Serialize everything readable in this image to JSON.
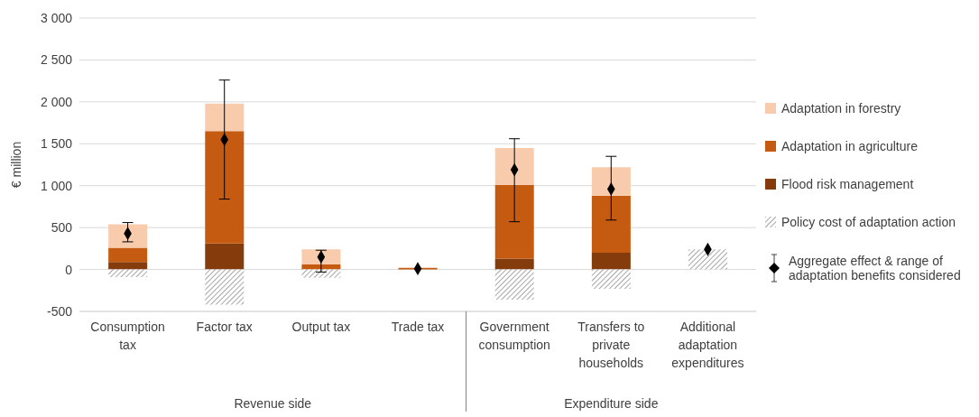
{
  "chart_data": {
    "type": "bar",
    "stacked": true,
    "ylabel": "€ million",
    "categories": [
      "Consumption tax",
      "Factor tax",
      "Output tax",
      "Trade tax",
      "Government consumption",
      "Transfers to private households",
      "Additional adaptation expenditures"
    ],
    "series": [
      {
        "name": "Flood risk management",
        "color": "#843c0c",
        "values": [
          90,
          310,
          0,
          0,
          130,
          200,
          0
        ]
      },
      {
        "name": "Adaptation in agriculture",
        "color": "#c55a11",
        "values": [
          170,
          1340,
          60,
          20,
          880,
          680,
          0
        ]
      },
      {
        "name": "Adaptation in forestry",
        "color": "#f8cbad",
        "values": [
          280,
          330,
          180,
          0,
          440,
          340,
          0
        ]
      },
      {
        "name": "Policy cost of adaptation action",
        "color": "#a6a6a6",
        "values": [
          -90,
          -420,
          -100,
          0,
          -360,
          -230,
          240
        ]
      },
      {
        "name": "Aggregate effect & range of adaptation benefits considered",
        "type": "scatter",
        "marker": "diamond",
        "color": "#000000",
        "values": [
          430,
          1550,
          150,
          10,
          1190,
          960,
          240
        ],
        "errors": [
          [
            330,
            560
          ],
          [
            840,
            2260
          ],
          [
            -30,
            230
          ],
          null,
          [
            570,
            1560
          ],
          [
            590,
            1350
          ],
          null
        ]
      }
    ],
    "ylim": [
      -500,
      3000
    ],
    "yticks": [
      {
        "value": -500,
        "label": "-500"
      },
      0,
      500,
      {
        "value": 1000,
        "label": "1 000"
      },
      {
        "value": 1500,
        "label": "1 500"
      },
      {
        "value": 2000,
        "label": "2 000"
      },
      {
        "value": 2500,
        "label": "2 500"
      },
      {
        "value": 3000,
        "label": "3 000"
      }
    ],
    "grid": "y",
    "legend": "right",
    "annotations": [
      "Revenue side",
      "Expenditure side"
    ]
  }
}
